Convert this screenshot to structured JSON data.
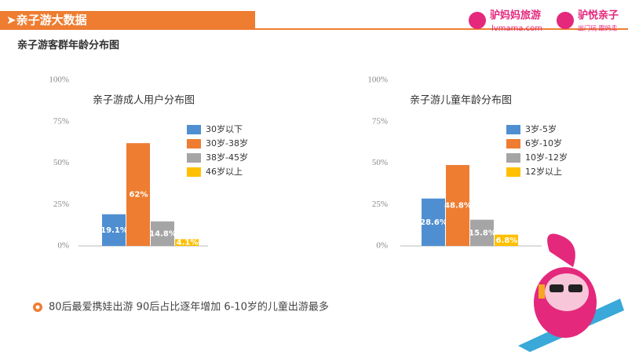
{
  "header": {
    "title": "➤亲子游大数据",
    "subtitle": "亲子游客群年龄分布图"
  },
  "logos": [
    {
      "name": "驴妈妈旅游",
      "url": "lvmama.com"
    },
    {
      "name": "驴悦亲子",
      "tagline": "出门玩 跟妈走"
    }
  ],
  "footer_note": "80后最爱携娃出游 90后占比逐年增加 6-10岁的儿童出游最多",
  "chart_data": [
    {
      "type": "bar",
      "title": "亲子游成人用户分布图",
      "categories": [
        "30岁以下",
        "30岁-38岁",
        "38岁-45岁",
        "46岁以上"
      ],
      "values": [
        19.1,
        62,
        14.8,
        4.1
      ],
      "value_labels": [
        "19.1%",
        "62%",
        "14.8%",
        "4.1%"
      ],
      "colors": [
        "#4f8fd1",
        "#ee7d31",
        "#a5a5a5",
        "#ffc000"
      ],
      "ylim": [
        0,
        100
      ],
      "yticks": [
        {
          "value": 0,
          "label": "0%"
        },
        {
          "value": 25,
          "label": "25%"
        },
        {
          "value": 50,
          "label": "50%"
        },
        {
          "value": 75,
          "label": "75%"
        },
        {
          "value": 100,
          "label": "100%"
        }
      ],
      "grid": false
    },
    {
      "type": "bar",
      "title": "亲子游儿童年龄分布图",
      "categories": [
        "3岁-5岁",
        "6岁-10岁",
        "10岁-12岁",
        "12岁以上"
      ],
      "values": [
        28.6,
        48.8,
        15.8,
        6.8
      ],
      "value_labels": [
        "28.6%",
        "48.8%",
        "15.8%",
        "6.8%"
      ],
      "colors": [
        "#4f8fd1",
        "#ee7d31",
        "#a5a5a5",
        "#ffc000"
      ],
      "ylim": [
        0,
        100
      ],
      "yticks": [
        {
          "value": 0,
          "label": "0%"
        },
        {
          "value": 25,
          "label": "25%"
        },
        {
          "value": 50,
          "label": "50%"
        },
        {
          "value": 75,
          "label": "75%"
        },
        {
          "value": 100,
          "label": "100%"
        }
      ],
      "grid": false
    }
  ]
}
